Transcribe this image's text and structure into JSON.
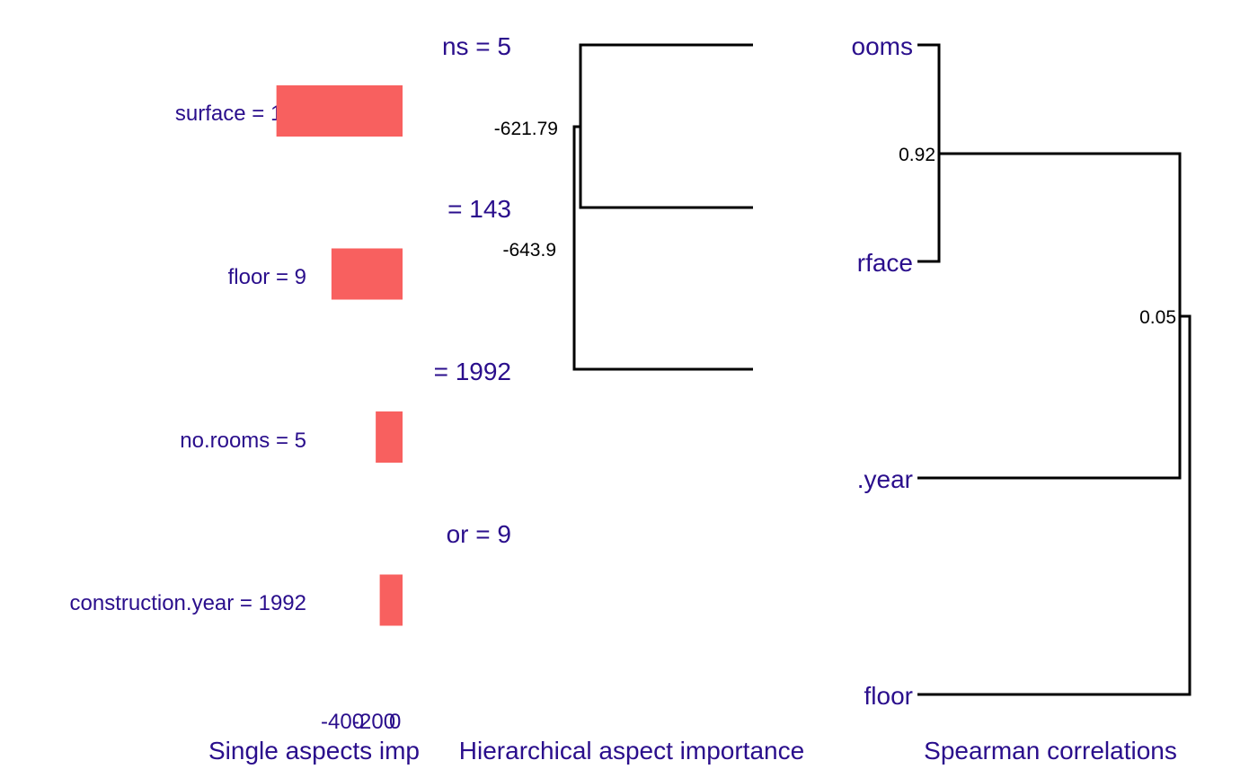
{
  "chart_data": [
    {
      "type": "bar",
      "orientation": "horizontal",
      "xlabel": "Single aspects imp",
      "categories": [
        "surface = 143",
        "floor = 9",
        "no.rooms = 5",
        "construction.year = 1992"
      ],
      "values": [
        -470,
        -265,
        -100,
        -85
      ],
      "xlim": [
        -1500,
        0
      ],
      "tick_labels": [
        "-400",
        "-200",
        "0"
      ],
      "bar_color": "#f8605f"
    },
    {
      "type": "dendrogram",
      "xlabel": "Hierarchical aspect importance",
      "leaves": [
        "ns = 5",
        "= 143",
        "= 1992",
        "or = 9"
      ],
      "merge_values": [
        "-621.79",
        "-643.9"
      ]
    },
    {
      "type": "dendrogram",
      "xlabel": "Spearman correlations",
      "leaves": [
        "ooms",
        "rface",
        ".year",
        "floor"
      ],
      "merge_values": [
        "0.92",
        "0.05"
      ]
    }
  ]
}
